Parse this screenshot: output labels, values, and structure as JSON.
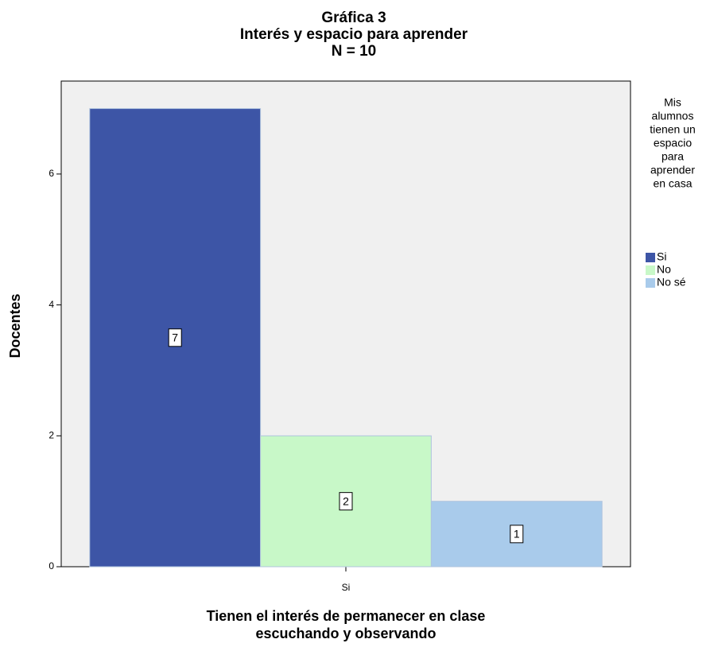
{
  "chart_data": {
    "type": "bar",
    "title_lines": [
      "Gráfica 3",
      "Interés y espacio para aprender",
      "N = 10"
    ],
    "x_label_lines": [
      "Tienen el interés de permanecer en clase",
      "escuchando y observando"
    ],
    "y_label": "Docentes",
    "categories": [
      "Si"
    ],
    "legend_title_lines": [
      "Mis",
      "alumnos",
      "tienen un",
      "espacio",
      "para",
      "aprender",
      "en casa"
    ],
    "series": [
      {
        "name": "Si",
        "color": "#3d55a6",
        "values": [
          7
        ]
      },
      {
        "name": "No",
        "color": "#c8f8c8",
        "values": [
          2
        ]
      },
      {
        "name": "No sé",
        "color": "#a9cbeb",
        "values": [
          1
        ]
      }
    ],
    "ylim": [
      0,
      7.42
    ],
    "yticks": [
      0,
      2,
      4,
      6
    ],
    "legend": "right"
  }
}
